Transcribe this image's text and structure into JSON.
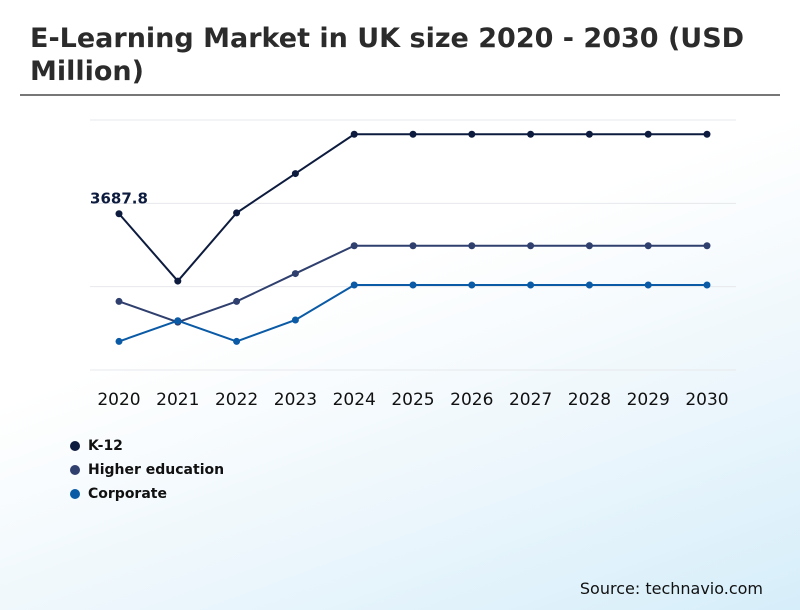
{
  "title": "E-Learning Market in UK size 2020 - 2030 (USD Million)",
  "source": "Source: technavio.com",
  "chart_data": {
    "type": "line",
    "x": [
      "2020",
      "2021",
      "2022",
      "2023",
      "2024",
      "2025",
      "2026",
      "2027",
      "2028",
      "2029",
      "2030"
    ],
    "ylim": [
      1500,
      5000
    ],
    "grid": true,
    "legend_position": "bottom-left",
    "series": [
      {
        "name": "K-12",
        "color": "#0d1b3e",
        "values": [
          3687.8,
          2745,
          3700,
          4250,
          4800,
          4800,
          4800,
          4800,
          4800,
          4800,
          4800
        ]
      },
      {
        "name": "Higher education",
        "color": "#2f3f6e",
        "values": [
          2460,
          2170,
          2460,
          2850,
          3240,
          3240,
          3240,
          3240,
          3240,
          3240,
          3240
        ]
      },
      {
        "name": "Corporate",
        "color": "#0a5aa6",
        "values": [
          1900,
          2190,
          1900,
          2200,
          2690,
          2690,
          2690,
          2690,
          2690,
          2690,
          2690
        ]
      }
    ],
    "annotations": [
      {
        "series": "K-12",
        "x": "2020",
        "text": "3687.8"
      }
    ]
  }
}
